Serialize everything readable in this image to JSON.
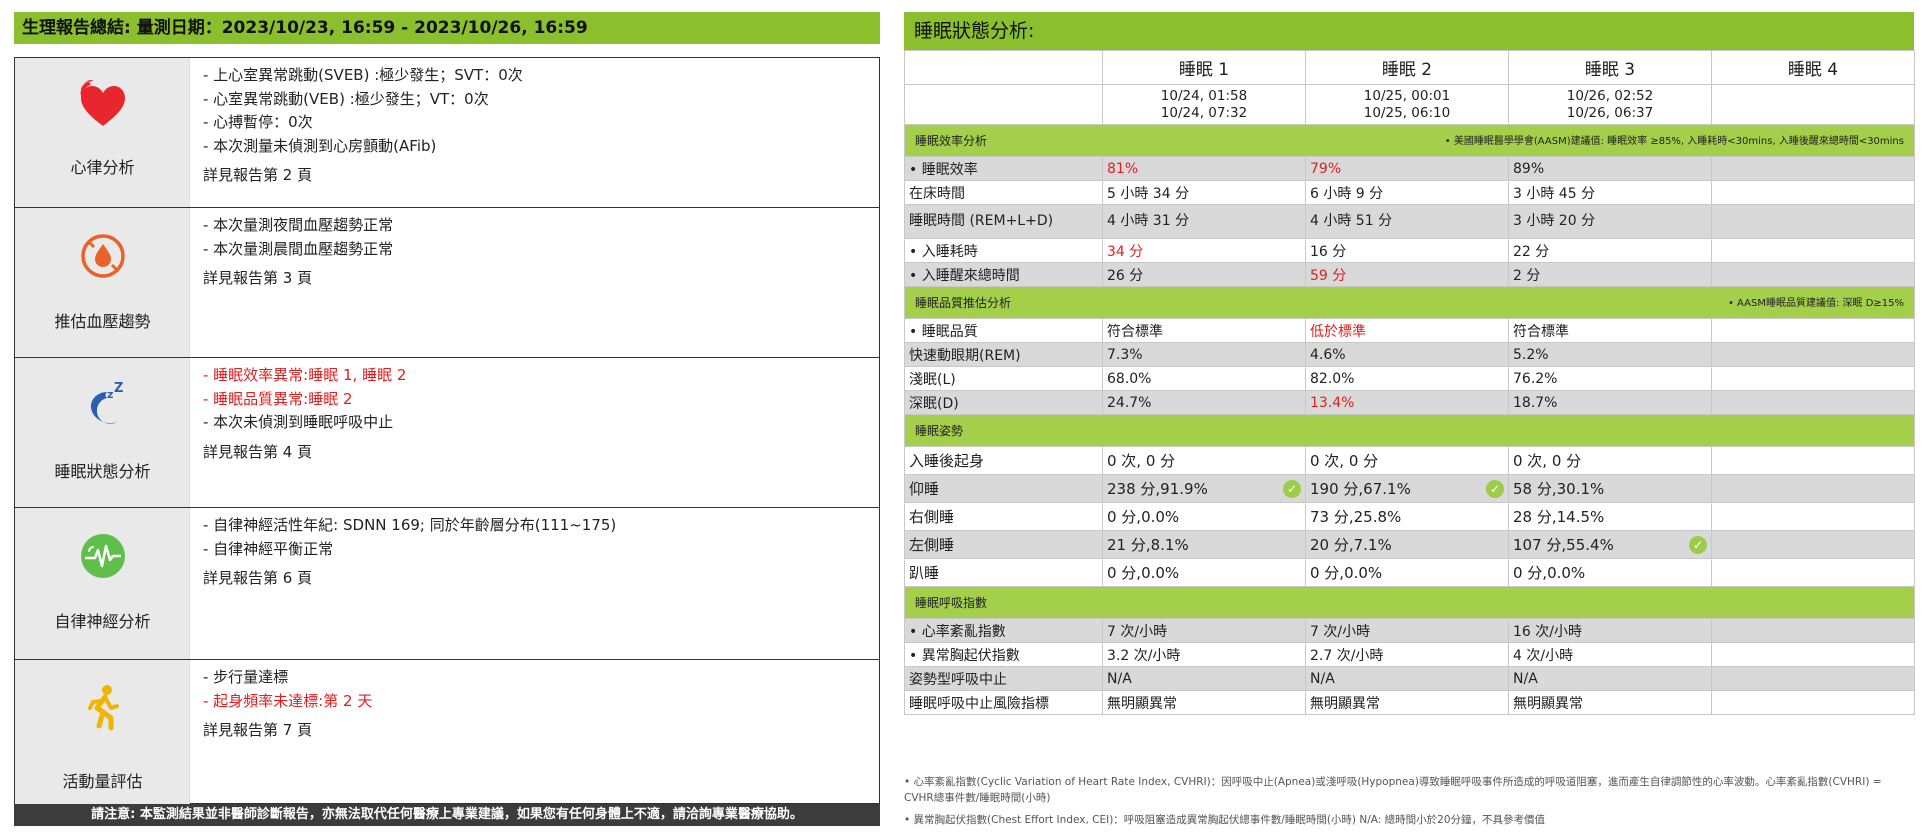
{
  "left": {
    "header": "生理報告總結: 量測日期：2023/10/23, 16:59 - 2023/10/26, 16:59",
    "sections": [
      {
        "label": "心律分析",
        "icon": "heart-icon",
        "lines": [
          {
            "text": "- 上心室異常跳動(SVEB) :極少發生；SVT：0次",
            "red": false
          },
          {
            "text": "- 心室異常跳動(VEB) :極少發生；VT：0次",
            "red": false
          },
          {
            "text": "- 心搏暫停：0次",
            "red": false
          },
          {
            "text": "- 本次測量未偵測到心房顫動(AFib)",
            "red": false
          }
        ],
        "ref": "詳見報告第 2 頁"
      },
      {
        "label": "推估血壓趨勢",
        "icon": "blood-drop-icon",
        "lines": [
          {
            "text": "- 本次量測夜間血壓趨勢正常",
            "red": false
          },
          {
            "text": "- 本次量測晨間血壓趨勢正常",
            "red": false
          }
        ],
        "ref": "詳見報告第 3 頁"
      },
      {
        "label": "睡眠狀態分析",
        "icon": "moon-sleep-icon",
        "lines": [
          {
            "text": "- 睡眠效率異常:睡眠 1, 睡眠 2",
            "red": true
          },
          {
            "text": "- 睡眠品質異常:睡眠 2",
            "red": true
          },
          {
            "text": "- 本次未偵測到睡眠呼吸中止",
            "red": false
          }
        ],
        "ref": "詳見報告第 4 頁"
      },
      {
        "label": "自律神經分析",
        "icon": "heartbeat-monitor-icon",
        "lines": [
          {
            "text": "- 自律神經活性年紀: SDNN 169; 同於年齡層分布(111~175)",
            "red": false
          },
          {
            "text": "- 自律神經平衡正常",
            "red": false
          }
        ],
        "ref": "詳見報告第 6 頁"
      },
      {
        "label": "活動量評估",
        "icon": "running-person-icon",
        "lines": [
          {
            "text": "- 步行量達標",
            "red": false
          },
          {
            "text": "- 起身頻率未達標:第 2 天",
            "red": true
          }
        ],
        "ref": "詳見報告第 7 頁"
      }
    ],
    "footer": "請注意: 本監測結果並非醫師診斷報告，亦無法取代任何醫療上專業建議，如果您有任何身體上不適，請洽詢專業醫療協助。"
  },
  "right": {
    "header": "睡眠狀態分析:",
    "columns": [
      "睡眠 1",
      "睡眠 2",
      "睡眠 3",
      "睡眠 4"
    ],
    "times": [
      [
        "10/24, 01:58",
        "10/24, 07:32"
      ],
      [
        "10/25, 00:01",
        "10/25, 06:10"
      ],
      [
        "10/26, 02:52",
        "10/26, 06:37"
      ],
      [
        "",
        ""
      ]
    ],
    "efficiency_section": {
      "title": "睡眠效率分析",
      "note": "• 美國睡眠醫學學會(AASM)建議值: 睡眠效率 ≥85%, 入睡耗時<30mins, 入睡後醒來總時間<30mins",
      "rows": [
        {
          "label": "• 睡眠效率",
          "cells": [
            {
              "t": "81%",
              "red": true
            },
            {
              "t": "79%",
              "red": true
            },
            {
              "t": "89%",
              "red": false
            },
            {
              "t": "",
              "red": false
            }
          ]
        },
        {
          "label": "在床時間",
          "cells": [
            {
              "t": "5 小時 34 分",
              "red": false
            },
            {
              "t": "6 小時 9 分",
              "red": false
            },
            {
              "t": "3 小時 45 分",
              "red": false
            },
            {
              "t": "",
              "red": false
            }
          ]
        },
        {
          "label": "睡眠時間 (REM+L+D)",
          "cells": [
            {
              "t": "4 小時 31 分",
              "red": false
            },
            {
              "t": "4 小時 51 分",
              "red": false
            },
            {
              "t": "3 小時 20 分",
              "red": false
            },
            {
              "t": "",
              "red": false
            }
          ]
        },
        {
          "label": "• 入睡耗時",
          "cells": [
            {
              "t": "34 分",
              "red": true
            },
            {
              "t": "16 分",
              "red": false
            },
            {
              "t": "22 分",
              "red": false
            },
            {
              "t": "",
              "red": false
            }
          ]
        },
        {
          "label": "• 入睡醒來總時間",
          "cells": [
            {
              "t": "26 分",
              "red": false
            },
            {
              "t": "59 分",
              "red": true
            },
            {
              "t": "2 分",
              "red": false
            },
            {
              "t": "",
              "red": false
            }
          ]
        }
      ]
    },
    "quality_section": {
      "title": "睡眠品質推估分析",
      "note": "• AASM睡眠品質建議值: 深眠 D≥15%",
      "rows": [
        {
          "label": "• 睡眠品質",
          "cells": [
            {
              "t": "符合標準",
              "red": false
            },
            {
              "t": "低於標準",
              "red": true
            },
            {
              "t": "符合標準",
              "red": false
            },
            {
              "t": "",
              "red": false
            }
          ]
        },
        {
          "label": "快速動眼期(REM)",
          "cells": [
            {
              "t": "7.3%",
              "red": false
            },
            {
              "t": "4.6%",
              "red": false
            },
            {
              "t": "5.2%",
              "red": false
            },
            {
              "t": "",
              "red": false
            }
          ]
        },
        {
          "label": "淺眠(L)",
          "cells": [
            {
              "t": "68.0%",
              "red": false
            },
            {
              "t": "82.0%",
              "red": false
            },
            {
              "t": "76.2%",
              "red": false
            },
            {
              "t": "",
              "red": false
            }
          ]
        },
        {
          "label": "深眠(D)",
          "cells": [
            {
              "t": "24.7%",
              "red": false
            },
            {
              "t": "13.4%",
              "red": true
            },
            {
              "t": "18.7%",
              "red": false
            },
            {
              "t": "",
              "red": false
            }
          ]
        }
      ]
    },
    "posture_section": {
      "title": "睡眠姿勢",
      "rows": [
        {
          "label": "入睡後起身",
          "cells": [
            {
              "t": "0 次, 0 分",
              "chk": false
            },
            {
              "t": "0 次, 0 分",
              "chk": false
            },
            {
              "t": "0 次, 0 分",
              "chk": false
            },
            {
              "t": "",
              "chk": false
            }
          ]
        },
        {
          "label": "仰睡",
          "cells": [
            {
              "t": "238 分,91.9%",
              "chk": true
            },
            {
              "t": "190 分,67.1%",
              "chk": true
            },
            {
              "t": "58 分,30.1%",
              "chk": false
            },
            {
              "t": "",
              "chk": false
            }
          ]
        },
        {
          "label": "右側睡",
          "cells": [
            {
              "t": "0 分,0.0%",
              "chk": false
            },
            {
              "t": "73 分,25.8%",
              "chk": false
            },
            {
              "t": "28 分,14.5%",
              "chk": false
            },
            {
              "t": "",
              "chk": false
            }
          ]
        },
        {
          "label": "左側睡",
          "cells": [
            {
              "t": "21 分,8.1%",
              "chk": false
            },
            {
              "t": "20 分,7.1%",
              "chk": false
            },
            {
              "t": "107 分,55.4%",
              "chk": true
            },
            {
              "t": "",
              "chk": false
            }
          ]
        },
        {
          "label": "趴睡",
          "cells": [
            {
              "t": "0 分,0.0%",
              "chk": false
            },
            {
              "t": "0 分,0.0%",
              "chk": false
            },
            {
              "t": "0 分,0.0%",
              "chk": false
            },
            {
              "t": "",
              "chk": false
            }
          ]
        }
      ]
    },
    "breathing_section": {
      "title": "睡眠呼吸指數",
      "rows": [
        {
          "label": "• 心率紊亂指數",
          "cells": [
            "7 次/小時",
            "7 次/小時",
            "16 次/小時",
            ""
          ]
        },
        {
          "label": "• 異常胸起伏指數",
          "cells": [
            "3.2 次/小時",
            "2.7 次/小時",
            "4 次/小時",
            ""
          ]
        },
        {
          "label": "姿勢型呼吸中止",
          "cells": [
            "N/A",
            "N/A",
            "N/A",
            ""
          ]
        },
        {
          "label": "睡眠呼吸中止風險指標",
          "cells": [
            "無明顯異常",
            "無明顯異常",
            "無明顯異常",
            ""
          ]
        }
      ]
    },
    "footnote1": "• 心率紊亂指數(Cyclic Variation of Heart Rate Index, CVHRI)：因呼吸中止(Apnea)或淺呼吸(Hypopnea)導致睡眠呼吸事件所造成的呼吸道阻塞，進而產生自律調節性的心率波動。心率紊亂指數(CVHRI) = CVHR總事件數/睡眠時間(小時)",
    "footnote2": "• 異常胸起伏指數(Chest Effort Index, CEI)：呼吸阻塞造成異常胸起伏總事件數/睡眠時間(小時) N/A: 總時間小於20分鐘，不具參考價值",
    "colors": {
      "accent": "#8cbf2e",
      "section": "#a3cf4a",
      "alert": "#e02020",
      "check": "#9ccc4a"
    }
  }
}
